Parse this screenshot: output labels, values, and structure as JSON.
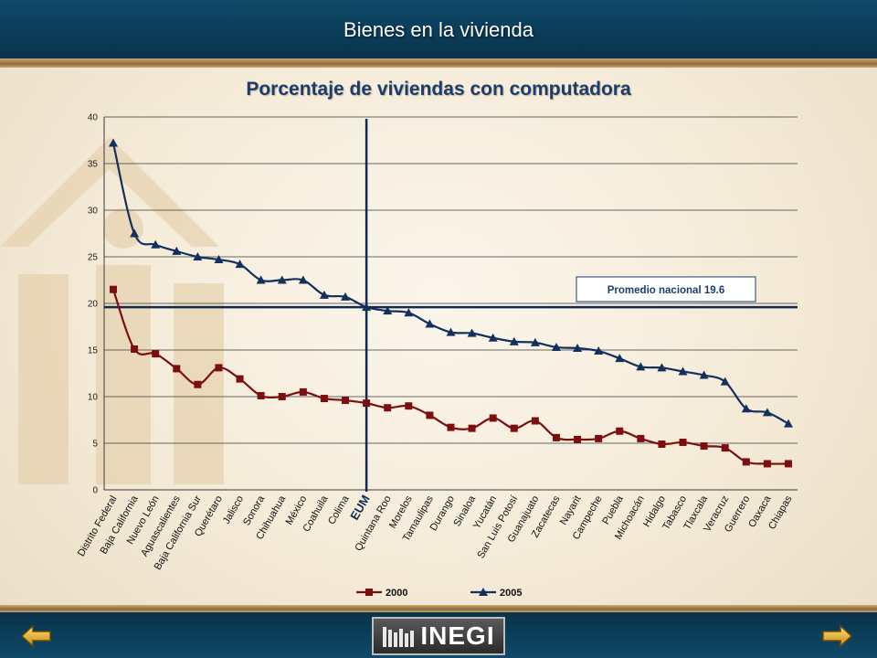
{
  "header": {
    "title": "Bienes en la vivienda"
  },
  "chart_data": {
    "type": "line",
    "title": "Porcentaje de viviendas con computadora",
    "categories": [
      "Distrito Federal",
      "Baja California",
      "Nuevo León",
      "Aguascalientes",
      "Baja California Sur",
      "Querétaro",
      "Jalisco",
      "Sonora",
      "Chihuahua",
      "México",
      "Coahuila",
      "Colima",
      "EUM",
      "Quintana Roo",
      "Morelos",
      "Tamaulipas",
      "Durango",
      "Sinaloa",
      "Yucatán",
      "San Luis Potosí",
      "Guanajuato",
      "Zacatecas",
      "Nayarit",
      "Campeche",
      "Puebla",
      "Michoacán",
      "Hidalgo",
      "Tabasco",
      "Tlaxcala",
      "Veracruz",
      "Guerrero",
      "Oaxaca",
      "Chiapas"
    ],
    "series": [
      {
        "name": "2000",
        "color": "#7b0f0f",
        "marker": "square",
        "values": [
          21.5,
          15.1,
          14.6,
          13.0,
          11.3,
          13.1,
          11.9,
          10.1,
          10.0,
          10.5,
          9.8,
          9.6,
          9.3,
          8.8,
          9.0,
          8.0,
          6.7,
          6.6,
          7.7,
          6.6,
          7.4,
          5.6,
          5.4,
          5.5,
          6.3,
          5.5,
          4.9,
          5.1,
          4.7,
          4.5,
          3.0,
          2.8,
          2.8
        ]
      },
      {
        "name": "2005",
        "color": "#132f5c",
        "marker": "triangle",
        "values": [
          37.2,
          27.5,
          26.3,
          25.6,
          25.0,
          24.7,
          24.2,
          22.5,
          22.5,
          22.5,
          20.9,
          20.7,
          19.6,
          19.2,
          19.0,
          17.8,
          16.9,
          16.8,
          16.3,
          15.9,
          15.8,
          15.3,
          15.2,
          14.9,
          14.1,
          13.2,
          13.1,
          12.7,
          12.3,
          11.6,
          8.7,
          8.3,
          7.1
        ]
      }
    ],
    "ylim": [
      0,
      40
    ],
    "yticks": [
      "0",
      "5",
      "10",
      "15",
      "20",
      "25",
      "30",
      "35",
      "40"
    ],
    "grid": true,
    "legend_position": "bottom-center",
    "reference_line": {
      "value": 19.6,
      "label": "Promedio nacional 19.6"
    },
    "highlight_category": "EUM"
  },
  "nav": {
    "back_icon": "arrow-left-icon",
    "next_icon": "arrow-right-icon"
  },
  "logo": {
    "text": "INEGI"
  }
}
